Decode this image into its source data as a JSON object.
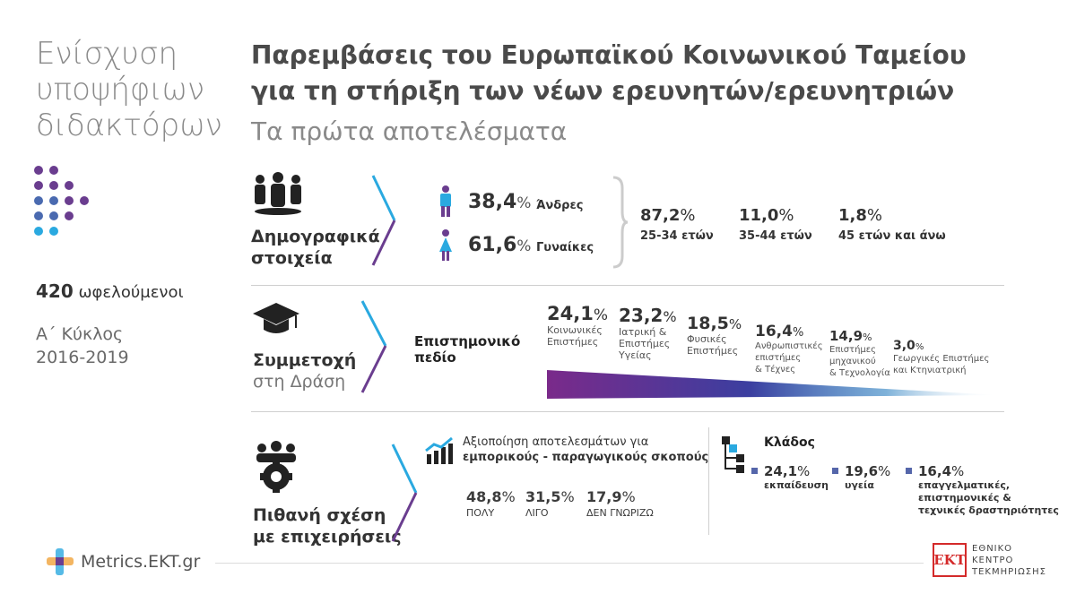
{
  "side_title": [
    "Ενίσχυση",
    "υποψήφιων",
    "διδακτόρων"
  ],
  "main_title": [
    "Παρεμβάσεις του Ευρωπαϊκού Κοινωνικού Ταμείου",
    "για τη στήριξη των νέων ερευνητών/ερευνητριών"
  ],
  "main_subtitle": "Τα πρώτα αποτελέσματα",
  "beneficiaries": {
    "count": "420",
    "label": "ωφελούμενοι"
  },
  "cycle": {
    "name": "Α΄ Κύκλος",
    "years": "2016-2019"
  },
  "demographics": {
    "label_line1": "Δημογραφικά",
    "label_line2": "στοιχεία",
    "gender": [
      {
        "value": "38,4",
        "unit": "%",
        "label": "Άνδρες",
        "color": "#3f2f7a"
      },
      {
        "value": "61,6",
        "unit": "%",
        "label": "Γυναίκες",
        "color": "#2a8fd0"
      }
    ],
    "age": [
      {
        "value": "87,2",
        "unit": "%",
        "label": "25-34 ετών"
      },
      {
        "value": "11,0",
        "unit": "%",
        "label": "35-44 ετών"
      },
      {
        "value": "1,8",
        "unit": "%",
        "label": "45 ετών και άνω"
      }
    ]
  },
  "participation": {
    "label_line1": "Συμμετοχή",
    "label_line2": "στη Δράση",
    "field_label_line1": "Επιστημονικό",
    "field_label_line2": "πεδίο",
    "fields": [
      {
        "value": "24,1",
        "unit": "%",
        "label_lines": [
          "Κοινωνικές",
          "Επιστήμες"
        ]
      },
      {
        "value": "23,2",
        "unit": "%",
        "label_lines": [
          "Ιατρική &",
          "Επιστήμες",
          "Υγείας"
        ]
      },
      {
        "value": "18,5",
        "unit": "%",
        "label_lines": [
          "Φυσικές",
          "Επιστήμες"
        ]
      },
      {
        "value": "16,4",
        "unit": "%",
        "label_lines": [
          "Ανθρωπιστικές",
          "επιστήμες",
          "& Τέχνες"
        ]
      },
      {
        "value": "14,9",
        "unit": "%",
        "label_lines": [
          "Επιστήμες",
          "μηχανικού",
          "& Τεχνολογία"
        ]
      },
      {
        "value": "3,0",
        "unit": "%",
        "label_lines": [
          "Γεωργικές Επιστήμες",
          "και Κτηνιατρική"
        ]
      }
    ],
    "gradient_start": "#7a2a8a",
    "gradient_end": "#ffffff"
  },
  "business": {
    "label_line1": "Πιθανή σχέση",
    "label_line2": "με επιχειρήσεις",
    "exploit_line1": "Αξιοποίηση αποτελεσμάτων για",
    "exploit_line2": "εμπορικούς - παραγωγικούς σκοπούς",
    "exploit_values": [
      {
        "value": "48,8",
        "unit": "%",
        "label": "ΠΟΛΥ"
      },
      {
        "value": "31,5",
        "unit": "%",
        "label": "ΛΙΓΟ"
      },
      {
        "value": "17,9",
        "unit": "%",
        "label": "ΔΕΝ ΓΝΩΡΙΖΩ"
      }
    ],
    "sector_label": "Κλάδος",
    "sectors": [
      {
        "value": "24,1",
        "unit": "%",
        "label_lines": [
          "εκπαίδευση"
        ]
      },
      {
        "value": "19,6",
        "unit": "%",
        "label_lines": [
          "υγεία"
        ]
      },
      {
        "value": "16,4",
        "unit": "%",
        "label_lines": [
          "επαγγελματικές,",
          "επιστημονικές &",
          "τεχνικές δραστηριότητες"
        ]
      }
    ]
  },
  "footer": {
    "metrics_logo": "Metrics.EKT.gr",
    "ekt_mark": "EKT",
    "ekt_lines": [
      "ΕΘΝΙΚΟ",
      "ΚΕΝΤΡΟ",
      "ΤΕΚΜΗΡΙΩΣΗΣ"
    ]
  },
  "colors": {
    "cyan": "#2aa9e0",
    "purple": "#6a3d8f",
    "ekt_red": "#d42a2a"
  }
}
